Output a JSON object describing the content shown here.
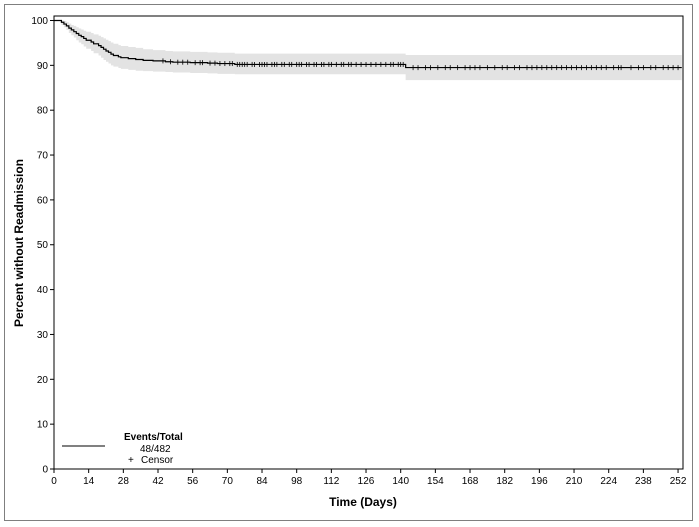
{
  "chart_data": {
    "type": "line",
    "title": "",
    "xlabel": "Time (Days)",
    "ylabel": "Percent without Readmission",
    "xlim": [
      0,
      254
    ],
    "ylim": [
      0,
      101
    ],
    "x_ticks": [
      0,
      14,
      28,
      42,
      56,
      70,
      84,
      98,
      112,
      126,
      140,
      154,
      168,
      182,
      196,
      210,
      224,
      238,
      252
    ],
    "y_ticks": [
      0,
      10,
      20,
      30,
      40,
      50,
      60,
      70,
      80,
      90,
      100
    ],
    "grid": false,
    "legend": {
      "placement": "bottom-left",
      "title": "Events/Total",
      "entries": [
        {
          "label": "48/482",
          "symbol": "line"
        },
        {
          "label": "Censor",
          "symbol": "plus"
        }
      ]
    },
    "series": [
      {
        "type": "survival-step",
        "color": "#000000",
        "x": [
          0,
          3,
          4,
          5,
          6,
          7,
          8,
          9,
          10,
          11,
          12,
          13,
          15,
          16,
          18,
          19,
          20,
          21,
          22,
          23,
          24,
          26,
          27,
          30,
          33,
          36,
          40,
          45,
          48,
          55,
          62,
          66,
          73,
          142
        ],
        "y": [
          100,
          99.6,
          99.2,
          98.8,
          98.3,
          97.9,
          97.5,
          97.1,
          96.7,
          96.4,
          96.0,
          95.6,
          95.2,
          94.8,
          94.4,
          94.0,
          93.6,
          93.2,
          92.9,
          92.5,
          92.2,
          91.9,
          91.7,
          91.5,
          91.3,
          91.1,
          91.0,
          90.8,
          90.7,
          90.6,
          90.5,
          90.4,
          90.2,
          89.5
        ],
        "ci_lower": [
          100,
          99.0,
          98.5,
          97.9,
          97.2,
          96.7,
          96.2,
          95.6,
          95.1,
          94.7,
          94.2,
          93.7,
          93.2,
          92.7,
          92.2,
          91.7,
          91.2,
          90.8,
          90.4,
          90.0,
          89.7,
          89.4,
          89.2,
          89.0,
          88.8,
          88.7,
          88.6,
          88.5,
          88.4,
          88.3,
          88.2,
          88.1,
          88.0,
          86.7
        ],
        "ci_upper": [
          100,
          100,
          99.9,
          99.6,
          99.3,
          99.0,
          98.8,
          98.5,
          98.2,
          98.0,
          97.7,
          97.5,
          97.2,
          96.9,
          96.6,
          96.3,
          96.0,
          95.7,
          95.4,
          95.1,
          94.8,
          94.5,
          94.3,
          94.1,
          93.9,
          93.6,
          93.4,
          93.2,
          93.1,
          93.0,
          92.9,
          92.8,
          92.6,
          92.3
        ],
        "ci_color": "#e3e3e3",
        "censor_x": [
          44,
          47,
          50,
          52,
          54,
          57,
          59,
          60,
          63,
          65,
          67,
          69,
          71,
          72,
          74,
          75,
          76,
          77,
          78,
          80,
          81,
          83,
          84,
          85,
          86,
          88,
          89,
          90,
          92,
          93,
          95,
          96,
          98,
          99,
          100,
          102,
          103,
          105,
          106,
          108,
          109,
          111,
          112,
          114,
          116,
          117,
          119,
          120,
          122,
          124,
          126,
          128,
          130,
          132,
          134,
          136,
          137,
          139,
          140,
          141,
          145,
          147,
          150,
          152,
          155,
          158,
          160,
          163,
          166,
          168,
          170,
          172,
          175,
          178,
          181,
          183,
          186,
          188,
          191,
          193,
          195,
          197,
          199,
          201,
          203,
          205,
          207,
          209,
          211,
          213,
          215,
          217,
          219,
          221,
          223,
          226,
          228,
          229,
          233,
          236,
          238,
          241,
          243,
          246,
          248,
          250,
          252
        ]
      }
    ]
  }
}
